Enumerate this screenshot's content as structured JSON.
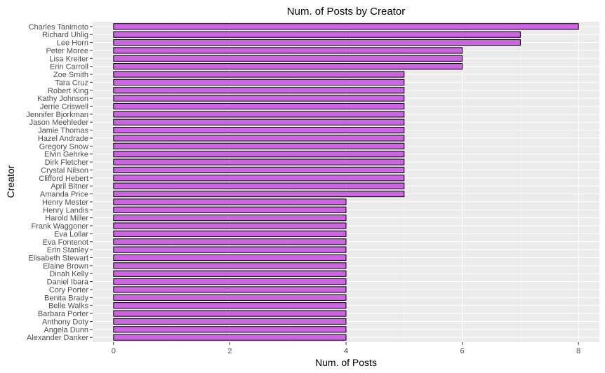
{
  "chart_data": {
    "type": "bar",
    "orientation": "horizontal",
    "title": "Num. of Posts by Creator",
    "xlabel": "Num. of Posts",
    "ylabel": "Creator",
    "xlim": [
      0,
      8
    ],
    "x_ticks": [
      "0",
      "2",
      "4",
      "6",
      "8"
    ],
    "grid": true,
    "colors": {
      "bar_fill": "#cc66e0",
      "bar_stroke": "#000000",
      "panel_background": "#ebebeb",
      "grid_major": "#ffffff"
    },
    "categories": [
      "Charles Tanimoto",
      "Richard Uhlig",
      "Lee Horn",
      "Peter Moree",
      "Lisa Kreiter",
      "Erin Carroll",
      "Zoe Smith",
      "Tara Cruz",
      "Robert King",
      "Kathy Johnson",
      "Jerrie Criswell",
      "Jennifer Bjorkman",
      "Jason Meehleder",
      "Jamie Thomas",
      "Hazel Andrade",
      "Gregory Snow",
      "Elvin Gehrke",
      "Dirk Fletcher",
      "Crystal Nilson",
      "Clifford Hebert",
      "April Bitner",
      "Amanda Price",
      "Henry Mester",
      "Henry Landis",
      "Harold Miller",
      "Frank Waggoner",
      "Eva Lollar",
      "Eva Fontenot",
      "Erin Stanley",
      "Elisabeth Stewart",
      "Elaine Brown",
      "Dinah Kelly",
      "Daniel Ibara",
      "Cory Porter",
      "Benita Brady",
      "Belle Walks",
      "Barbara Porter",
      "Anthony Doty",
      "Angela Dunn",
      "Alexander Danker"
    ],
    "values": [
      8,
      7,
      7,
      6,
      6,
      6,
      5,
      5,
      5,
      5,
      5,
      5,
      5,
      5,
      5,
      5,
      5,
      5,
      5,
      5,
      5,
      5,
      4,
      4,
      4,
      4,
      4,
      4,
      4,
      4,
      4,
      4,
      4,
      4,
      4,
      4,
      4,
      4,
      4,
      4
    ]
  }
}
